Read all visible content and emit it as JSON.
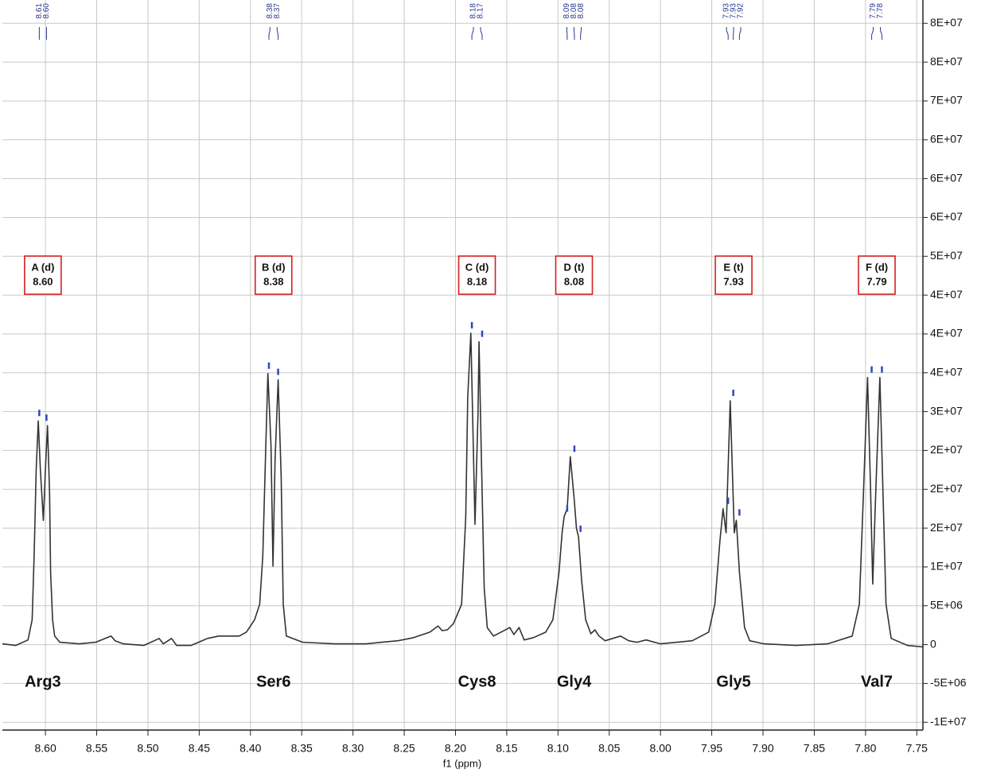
{
  "chart_data": {
    "type": "line",
    "xlabel": "f1 (ppm)",
    "color": "#333333",
    "grid": true,
    "xlim": [
      8.642,
      7.744
    ],
    "ylim": [
      -11000000,
      83000000
    ],
    "xticks": [
      {
        "value": 8.6,
        "label": "8.60"
      },
      8.55,
      {
        "value": 8.5,
        "label": "8.50"
      },
      8.45,
      {
        "value": 8.4,
        "label": "8.40"
      },
      8.35,
      {
        "value": 8.3,
        "label": "8.30"
      },
      8.25,
      {
        "value": 8.2,
        "label": "8.20"
      },
      8.15,
      {
        "value": 8.1,
        "label": "8.10"
      },
      8.05,
      {
        "value": 8.0,
        "label": "8.00"
      },
      7.95,
      {
        "value": 7.9,
        "label": "7.90"
      },
      7.85,
      {
        "value": 7.8,
        "label": "7.80"
      },
      7.75
    ],
    "yticks": [
      {
        "value": -10000000,
        "label": "-1E+07"
      },
      {
        "value": -5000000,
        "label": "-5E+06"
      },
      0,
      {
        "value": 5000000,
        "label": "5E+06"
      },
      {
        "value": 10000000,
        "label": "1E+07"
      },
      {
        "value": 15000000,
        "label": "2E+07"
      },
      {
        "value": 20000000,
        "label": "2E+07"
      },
      {
        "value": 25000000,
        "label": "2E+07"
      },
      {
        "value": 30000000,
        "label": "3E+07"
      },
      {
        "value": 35000000,
        "label": "4E+07"
      },
      {
        "value": 40000000,
        "label": "4E+07"
      },
      {
        "value": 45000000,
        "label": "4E+07"
      },
      {
        "value": 50000000,
        "label": "5E+07"
      },
      {
        "value": 55000000,
        "label": "6E+07"
      },
      {
        "value": 60000000,
        "label": "6E+07"
      },
      {
        "value": 65000000,
        "label": "6E+07"
      },
      {
        "value": 70000000,
        "label": "7E+07"
      },
      {
        "value": 75000000,
        "label": "8E+07"
      },
      {
        "value": 80000000,
        "label": "8E+07"
      }
    ],
    "x": [
      8.642,
      8.629,
      8.617,
      8.613,
      8.611,
      8.609,
      8.607,
      8.605,
      8.602,
      8.6,
      8.598,
      8.596,
      8.595,
      8.593,
      8.591,
      8.586,
      8.567,
      8.551,
      8.536,
      8.532,
      8.524,
      8.504,
      8.489,
      8.485,
      8.477,
      8.472,
      8.458,
      8.442,
      8.431,
      8.411,
      8.404,
      8.396,
      8.391,
      8.388,
      8.385,
      8.383,
      8.38,
      8.378,
      8.376,
      8.373,
      8.37,
      8.368,
      8.365,
      8.349,
      8.318,
      8.287,
      8.272,
      8.256,
      8.241,
      8.225,
      8.217,
      8.213,
      8.208,
      8.202,
      8.194,
      8.19,
      8.188,
      8.185,
      8.183,
      8.181,
      8.178,
      8.177,
      8.175,
      8.172,
      8.169,
      8.163,
      8.147,
      8.143,
      8.138,
      8.133,
      8.124,
      8.112,
      8.105,
      8.099,
      8.096,
      8.094,
      8.091,
      8.088,
      8.084,
      8.082,
      8.08,
      8.077,
      8.073,
      8.068,
      8.064,
      8.06,
      8.054,
      8.039,
      8.031,
      8.023,
      8.014,
      8.0,
      7.969,
      7.953,
      7.947,
      7.942,
      7.939,
      7.936,
      7.932,
      7.928,
      7.926,
      7.923,
      7.918,
      7.913,
      7.899,
      7.868,
      7.837,
      7.813,
      7.806,
      7.802,
      7.798,
      7.795,
      7.793,
      7.79,
      7.786,
      7.783,
      7.78,
      7.775,
      7.759,
      7.744
    ],
    "values": [
      100000,
      -100000,
      600000,
      3200000,
      11400000,
      22600000,
      28800000,
      22600000,
      16000000,
      22600000,
      28200000,
      19600000,
      9300000,
      3200000,
      1100000,
      300000,
      100000,
      300000,
      1100000,
      500000,
      100000,
      -100000,
      800000,
      100000,
      800000,
      -100000,
      -100000,
      800000,
      1100000,
      1100000,
      1600000,
      3200000,
      5200000,
      11400000,
      25700000,
      34900000,
      25700000,
      10100000,
      23700000,
      34100000,
      21600000,
      5200000,
      1100000,
      300000,
      100000,
      100000,
      300000,
      500000,
      900000,
      1600000,
      2400000,
      1800000,
      1900000,
      2700000,
      5200000,
      16500000,
      31900000,
      40100000,
      27800000,
      15500000,
      29800000,
      39000000,
      25700000,
      7300000,
      2200000,
      1100000,
      2200000,
      1300000,
      2200000,
      600000,
      900000,
      1600000,
      3200000,
      9300000,
      14400000,
      16500000,
      17500000,
      24200000,
      18500000,
      15000000,
      13900000,
      8300000,
      3200000,
      1400000,
      1900000,
      1100000,
      500000,
      1100000,
      500000,
      300000,
      600000,
      100000,
      500000,
      1600000,
      5200000,
      13400000,
      17500000,
      14400000,
      31400000,
      14400000,
      16000000,
      9300000,
      2200000,
      500000,
      100000,
      -100000,
      100000,
      1100000,
      5200000,
      19600000,
      34400000,
      19600000,
      7800000,
      19600000,
      34400000,
      19600000,
      5200000,
      800000,
      -100000,
      -300000
    ],
    "multiplets": [
      {
        "name": "A (d)",
        "shift": {
          "value": 8.6,
          "label": "8.60"
        },
        "residue": "Arg3",
        "peaks": [
          {
            "x": 8.606,
            "label": "8.61",
            "y": 28800000
          },
          {
            "x": 8.599,
            "label": "8.60",
            "y": 28200000
          }
        ]
      },
      {
        "name": "B (d)",
        "shift": {
          "value": 8.38,
          "label": "8.38"
        },
        "residue": "Ser6",
        "peaks": [
          {
            "x": 8.382,
            "label": "8.38",
            "y": 34900000
          },
          {
            "x": 8.373,
            "label": "8.37",
            "y": 34100000
          }
        ]
      },
      {
        "name": "C (d)",
        "shift": {
          "value": 8.18,
          "label": "8.18"
        },
        "residue": "Cys8",
        "peaks": [
          {
            "x": 8.184,
            "label": "8.18",
            "y": 40100000
          },
          {
            "x": 8.174,
            "label": "8.17",
            "y": 39000000
          }
        ]
      },
      {
        "name": "D (t)",
        "shift": {
          "value": 8.08,
          "label": "8.08"
        },
        "residue": "Gly4",
        "peaks": [
          {
            "x": 8.091,
            "label": "8.09",
            "y": 16500000
          },
          {
            "x": 8.084,
            "label": "8.08",
            "y": 24200000
          },
          {
            "x": 8.078,
            "label": "8.08",
            "y": 13900000
          }
        ]
      },
      {
        "name": "E (t)",
        "shift": {
          "value": 7.93,
          "label": "7.93"
        },
        "residue": "Gly5",
        "peaks": [
          {
            "x": 7.934,
            "label": "7.93",
            "y": 17500000
          },
          {
            "x": 7.929,
            "label": "7.93",
            "y": 31400000
          },
          {
            "x": 7.923,
            "label": "7.92",
            "y": 16000000
          }
        ]
      },
      {
        "name": "F (d)",
        "shift": {
          "value": 7.79,
          "label": "7.79"
        },
        "residue": "Val7",
        "peaks": [
          {
            "x": 7.794,
            "label": "7.79",
            "y": 34400000
          },
          {
            "x": 7.784,
            "label": "7.78",
            "y": 34400000
          }
        ]
      }
    ]
  }
}
